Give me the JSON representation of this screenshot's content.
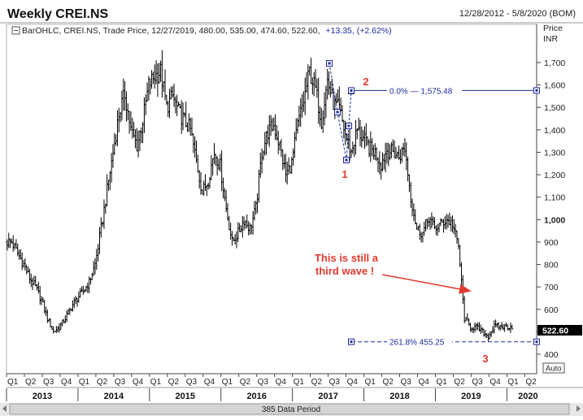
{
  "header": {
    "title": "Weekly CREI.NS",
    "date_range": "12/28/2012 - 5/8/2020 (BOM)"
  },
  "info_line": {
    "prefix": "BarOHLC, CREI.NS, Trade Price, 12/27/2019, 480.00, 535.00, 474.60, 522.60,",
    "change": "+13.35, (+2.62%)"
  },
  "y_axis": {
    "label_top": "Price",
    "label_unit": "INR",
    "ticks": [
      "1,700",
      "1,600",
      "1,500",
      "1,400",
      "1,300",
      "1,200",
      "1,100",
      "1,000",
      "900",
      "800",
      "700",
      "600",
      "500",
      "400"
    ],
    "tick_values": [
      1700,
      1600,
      1500,
      1400,
      1300,
      1200,
      1100,
      1000,
      900,
      800,
      700,
      600,
      500,
      400
    ],
    "bold_tick": "1,000",
    "last_price": "522.60",
    "auto_button": "Auto"
  },
  "x_axis": {
    "quarters": [
      "Q1",
      "Q2",
      "Q3",
      "Q4",
      "Q1",
      "Q2",
      "Q3",
      "Q4",
      "Q1",
      "Q2",
      "Q3",
      "Q4",
      "Q1",
      "Q2",
      "Q3",
      "Q4",
      "Q1",
      "Q2",
      "Q3",
      "Q4",
      "Q1",
      "Q2",
      "Q3",
      "Q4",
      "Q1",
      "Q2",
      "Q3",
      "Q4",
      "Q1",
      "Q2"
    ],
    "years": [
      "2013",
      "2014",
      "2015",
      "2016",
      "2017",
      "2018",
      "2019",
      "2020"
    ]
  },
  "footer": {
    "data_period": "385 Data Period"
  },
  "annotations": {
    "wave_labels": [
      "1",
      "2",
      "3"
    ],
    "note_line1": "This is still a",
    "note_line2": "third wave !",
    "fib_top": "0.0%",
    "fib_top_value": "1,575.48",
    "fib_bottom": "261.8% 455.25"
  },
  "colors": {
    "bars": "#000000",
    "fib": "#1c2b9e",
    "annotation": "#e03a2f",
    "pattern": "#1c2b9e",
    "last_price_bg": "#000000",
    "info_change": "#1c2b9e"
  },
  "chart_data": {
    "type": "ohlc",
    "title": "Weekly CREI.NS",
    "ylabel": "Price INR",
    "ylim": [
      380,
      1790
    ],
    "series": [
      {
        "name": "CREI.NS",
        "x": [
          "2013-01",
          "2013-02",
          "2013-03",
          "2013-04",
          "2013-05",
          "2013-06",
          "2013-07",
          "2013-08",
          "2013-09",
          "2013-10",
          "2013-11",
          "2013-12",
          "2014-01",
          "2014-02",
          "2014-03",
          "2014-04",
          "2014-05",
          "2014-06",
          "2014-07",
          "2014-08",
          "2014-09",
          "2014-10",
          "2014-11",
          "2014-12",
          "2015-01",
          "2015-02",
          "2015-03",
          "2015-04",
          "2015-05",
          "2015-06",
          "2015-07",
          "2015-08",
          "2015-09",
          "2015-10",
          "2015-11",
          "2015-12",
          "2016-01",
          "2016-02",
          "2016-03",
          "2016-04",
          "2016-05",
          "2016-06",
          "2016-07",
          "2016-08",
          "2016-09",
          "2016-10",
          "2016-11",
          "2016-12",
          "2017-01",
          "2017-02",
          "2017-03",
          "2017-04",
          "2017-05",
          "2017-06",
          "2017-07",
          "2017-08",
          "2017-09",
          "2017-10",
          "2017-11",
          "2017-12",
          "2018-01",
          "2018-02",
          "2018-03",
          "2018-04",
          "2018-05",
          "2018-06",
          "2018-07",
          "2018-08",
          "2018-09",
          "2018-10",
          "2018-11",
          "2018-12",
          "2019-01",
          "2019-02",
          "2019-03",
          "2019-04",
          "2019-05",
          "2019-06",
          "2019-07",
          "2019-08",
          "2019-09",
          "2019-10",
          "2019-11",
          "2019-12",
          "2020-01"
        ],
        "close": [
          900,
          850,
          800,
          740,
          700,
          640,
          560,
          500,
          520,
          560,
          610,
          650,
          680,
          720,
          800,
          960,
          1130,
          1300,
          1470,
          1560,
          1400,
          1330,
          1440,
          1600,
          1640,
          1660,
          1500,
          1550,
          1480,
          1440,
          1400,
          1260,
          1120,
          1180,
          1300,
          1240,
          1050,
          900,
          940,
          1000,
          960,
          1050,
          1300,
          1390,
          1420,
          1330,
          1200,
          1250,
          1420,
          1530,
          1660,
          1580,
          1440,
          1620,
          1520,
          1490,
          1380,
          1300,
          1400,
          1360,
          1320,
          1300,
          1250,
          1310,
          1300,
          1280,
          1320,
          1100,
          960,
          940,
          1010,
          960,
          980,
          1000,
          980,
          880,
          560,
          520,
          520,
          500,
          480,
          523,
          523,
          523,
          523
        ]
      }
    ],
    "wave_points": [
      {
        "label": "1",
        "date": "2017-09",
        "price": 1265
      },
      {
        "label": "2",
        "date": "2017-10",
        "price": 1575
      },
      {
        "label": "3",
        "date": "2019-08",
        "price": 455
      }
    ],
    "fibonacci": [
      {
        "level": "0.0%",
        "price": 1575.48
      },
      {
        "level": "261.8%",
        "price": 455.25
      }
    ],
    "last_close": 522.6,
    "last_date": "12/27/2019"
  }
}
